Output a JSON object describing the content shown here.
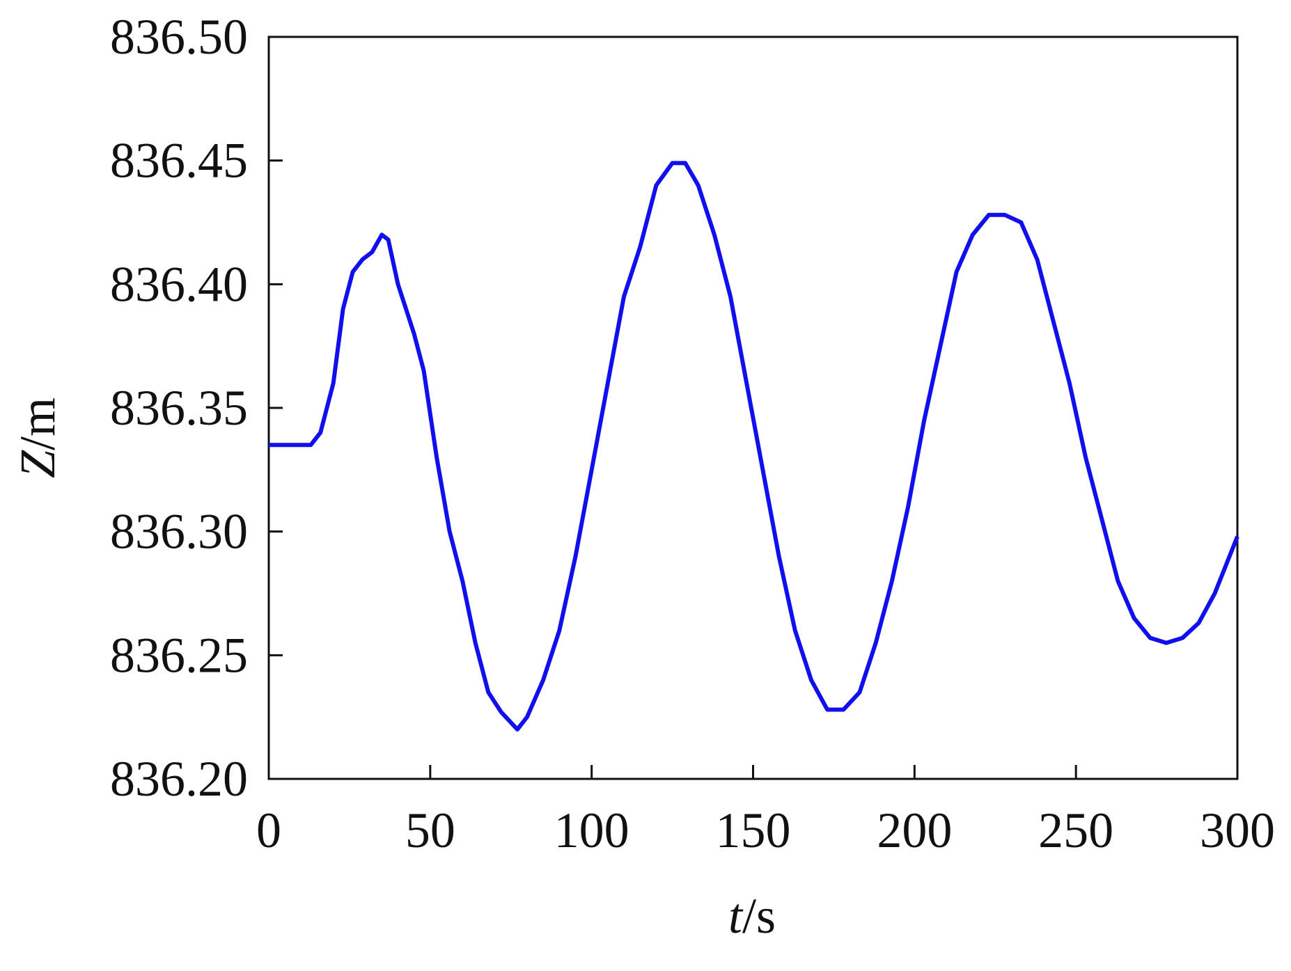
{
  "chart_data": {
    "type": "line",
    "x_label": "t/s",
    "y_label": "Z/m",
    "x": [
      0,
      13,
      16,
      20,
      23,
      26,
      29,
      32,
      35,
      37,
      40,
      45,
      48,
      52,
      56,
      60,
      64,
      68,
      72,
      77,
      80,
      85,
      90,
      95,
      100,
      105,
      110,
      115,
      120,
      125,
      129,
      133,
      138,
      143,
      148,
      153,
      158,
      163,
      168,
      173,
      178,
      183,
      188,
      193,
      198,
      203,
      208,
      213,
      218,
      223,
      228,
      233,
      238,
      243,
      248,
      253,
      258,
      263,
      268,
      273,
      278,
      283,
      288,
      293,
      300
    ],
    "series": [
      {
        "name": "Z",
        "color": "#1010ee",
        "values": [
          836.335,
          836.335,
          836.34,
          836.36,
          836.39,
          836.405,
          836.41,
          836.413,
          836.42,
          836.418,
          836.4,
          836.38,
          836.365,
          836.33,
          836.3,
          836.28,
          836.255,
          836.235,
          836.227,
          836.22,
          836.225,
          836.24,
          836.26,
          836.29,
          836.325,
          836.36,
          836.395,
          836.415,
          836.44,
          836.449,
          836.449,
          836.44,
          836.42,
          836.395,
          836.36,
          836.325,
          836.29,
          836.26,
          836.24,
          836.228,
          836.228,
          836.235,
          836.255,
          836.28,
          836.31,
          836.345,
          836.375,
          836.405,
          836.42,
          836.428,
          836.428,
          836.425,
          836.41,
          836.385,
          836.36,
          836.33,
          836.305,
          836.28,
          836.265,
          836.257,
          836.255,
          836.257,
          836.263,
          836.275,
          836.298
        ]
      }
    ],
    "xlim": [
      0,
      300
    ],
    "xticks": [
      0,
      50,
      100,
      150,
      200,
      250,
      300
    ],
    "ylim": [
      836.2,
      836.5
    ],
    "yticks": [
      {
        "value": 836.2,
        "label": "836.20"
      },
      836.25,
      {
        "value": 836.3,
        "label": "836.30"
      },
      836.35,
      {
        "value": 836.4,
        "label": "836.40"
      },
      836.45,
      {
        "value": 836.5,
        "label": "836.50"
      }
    ],
    "grid": false
  }
}
